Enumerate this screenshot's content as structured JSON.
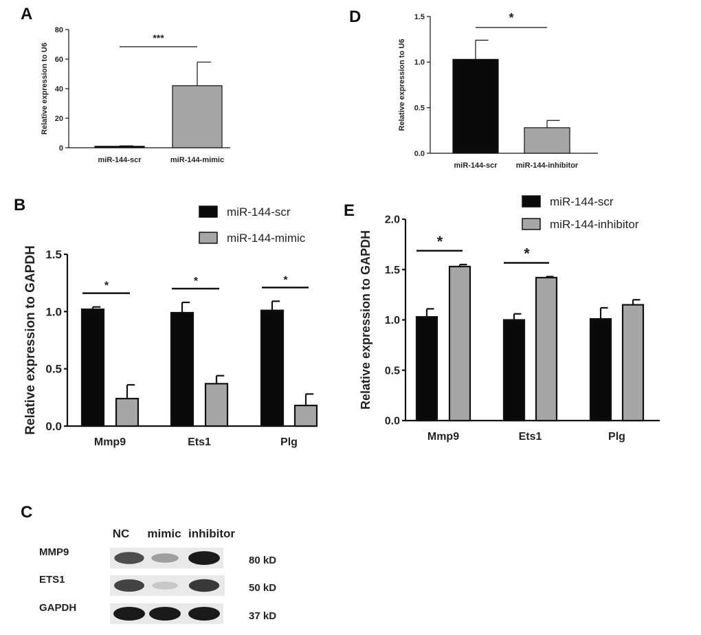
{
  "chart_data": [
    {
      "panel": "A",
      "type": "bar",
      "categories": [
        "miR-144-scr",
        "miR-144-mimic"
      ],
      "values": [
        1,
        42
      ],
      "errors": [
        0.3,
        16
      ],
      "colors": [
        "#0a0a0a",
        "#a6a6a6"
      ],
      "ylabel": "Relative expression to U6",
      "ylim": [
        0,
        80
      ],
      "yticks": [
        0,
        20,
        40,
        60,
        80
      ],
      "significance": [
        {
          "from": 0,
          "to": 1,
          "label": "***"
        }
      ]
    },
    {
      "panel": "D",
      "type": "bar",
      "categories": [
        "miR-144-scr",
        "miR-144-inhibitor"
      ],
      "values": [
        1.03,
        0.28
      ],
      "errors": [
        0.21,
        0.08
      ],
      "colors": [
        "#0a0a0a",
        "#a6a6a6"
      ],
      "ylabel": "Relative expression to U6",
      "ylim": [
        0,
        1.5
      ],
      "yticks": [
        "0.0",
        "0.5",
        "1.0",
        "1.5"
      ],
      "significance": [
        {
          "from": 0,
          "to": 1,
          "label": "*"
        }
      ]
    },
    {
      "panel": "B",
      "type": "bar",
      "categories": [
        "Mmp9",
        "Ets1",
        "Plg"
      ],
      "series": [
        {
          "name": "miR-144-scr",
          "color": "#0a0a0a",
          "values": [
            1.02,
            0.99,
            1.01
          ],
          "errors": [
            0.02,
            0.09,
            0.08
          ]
        },
        {
          "name": "miR-144-mimic",
          "color": "#a6a6a6",
          "values": [
            0.24,
            0.37,
            0.18
          ],
          "errors": [
            0.12,
            0.07,
            0.1
          ]
        }
      ],
      "ylabel": "Relative expression to GAPDH",
      "ylim": [
        0,
        1.5
      ],
      "yticks": [
        "0.0",
        "0.5",
        "1.0",
        "1.5"
      ],
      "significance": [
        {
          "group": 0,
          "label": "*"
        },
        {
          "group": 1,
          "label": "*"
        },
        {
          "group": 2,
          "label": "*"
        }
      ],
      "legend": "top-right"
    },
    {
      "panel": "E",
      "type": "bar",
      "categories": [
        "Mmp9",
        "Ets1",
        "Plg"
      ],
      "series": [
        {
          "name": "miR-144-scr",
          "color": "#0a0a0a",
          "values": [
            1.03,
            1.0,
            1.01
          ],
          "errors": [
            0.08,
            0.06,
            0.11
          ]
        },
        {
          "name": "miR-144-inhibitor",
          "color": "#a6a6a6",
          "values": [
            1.53,
            1.42,
            1.15
          ],
          "errors": [
            0.02,
            0.01,
            0.05
          ]
        }
      ],
      "ylabel": "Relative expression to GAPDH",
      "ylim": [
        0,
        2.0
      ],
      "yticks": [
        "0.0",
        "0.5",
        "1.0",
        "1.5",
        "2.0"
      ],
      "significance": [
        {
          "group": 0,
          "label": "*"
        },
        {
          "group": 1,
          "label": "*"
        }
      ],
      "legend": "top-right"
    }
  ],
  "western_blot": {
    "panel": "C",
    "lanes": [
      "NC",
      "mimic",
      "inhibitor"
    ],
    "rows": [
      {
        "protein": "MMP9",
        "size": "80 kD",
        "intensities": [
          0.75,
          0.35,
          1.0
        ]
      },
      {
        "protein": "ETS1",
        "size": "50 kD",
        "intensities": [
          0.8,
          0.15,
          0.85
        ]
      },
      {
        "protein": "GAPDH",
        "size": "37 kD",
        "intensities": [
          1.0,
          1.0,
          1.0
        ]
      }
    ]
  }
}
